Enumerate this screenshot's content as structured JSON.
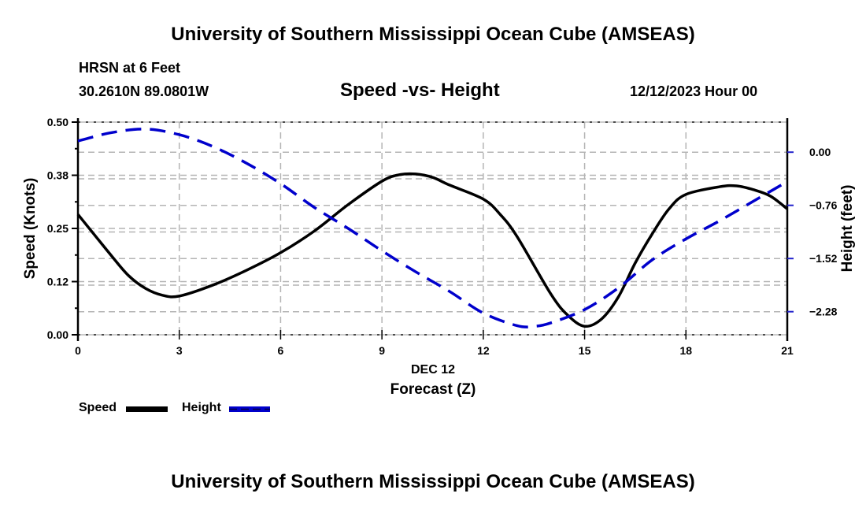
{
  "header": {
    "main_title": "University of Southern Mississippi Ocean Cube (AMSEAS)",
    "station": "HRSN at 6 Feet",
    "coords": "30.2610N  89.0801W",
    "subtitle": "Speed -vs- Height",
    "date": "12/12/2023 Hour 00"
  },
  "footer": {
    "title": "University of Southern Mississippi Ocean Cube (AMSEAS)"
  },
  "chart_data": {
    "type": "line",
    "title": "Speed -vs- Height",
    "xlabel": "Forecast (Z)",
    "xlabel_date": "DEC 12",
    "ylabel": "Speed (Knots)",
    "y2label": "Height (feet)",
    "xlim": [
      0,
      21
    ],
    "ylim": [
      0,
      0.5
    ],
    "y2lim": [
      -2.61,
      0.43
    ],
    "xticks": [
      0,
      3,
      6,
      9,
      12,
      15,
      18,
      21
    ],
    "xtick_labels": [
      "0",
      "3",
      "6",
      "9",
      "12",
      "15",
      "18",
      "21"
    ],
    "yticks": [
      0.0,
      0.125,
      0.25,
      0.375,
      0.5
    ],
    "ytick_labels": [
      "0.00",
      "0.12",
      "0.25",
      "0.38",
      "0.50"
    ],
    "y2ticks": [
      0.0,
      -0.76,
      -1.52,
      -2.28
    ],
    "y2tick_labels": [
      "0.00",
      "−0.76",
      "−1.52",
      "−2.28"
    ],
    "grid": true,
    "legend_position": "bottom-left",
    "series": [
      {
        "name": "Speed",
        "axis": "left",
        "color": "#000000",
        "style": "solid",
        "x": [
          0,
          1,
          1.5,
          2,
          2.5,
          3,
          4,
          5,
          6,
          7,
          8,
          9,
          9.5,
          10,
          10.5,
          11,
          12,
          12.5,
          13,
          14,
          14.5,
          15,
          15.5,
          16,
          16.5,
          17,
          17.5,
          18,
          19,
          19.5,
          20,
          20.5,
          21
        ],
        "values": [
          0.283,
          0.185,
          0.139,
          0.109,
          0.093,
          0.091,
          0.117,
          0.152,
          0.193,
          0.244,
          0.306,
          0.361,
          0.376,
          0.378,
          0.37,
          0.352,
          0.319,
          0.283,
          0.231,
          0.096,
          0.046,
          0.02,
          0.037,
          0.089,
          0.169,
          0.237,
          0.296,
          0.33,
          0.348,
          0.35,
          0.341,
          0.326,
          0.296
        ]
      },
      {
        "name": "Height",
        "axis": "right",
        "color": "#0000cc",
        "style": "dashed",
        "x": [
          0,
          1,
          2,
          3,
          4,
          5,
          6,
          7,
          8,
          9,
          10,
          11,
          12,
          13,
          13.5,
          14,
          15,
          16,
          17,
          18,
          19,
          20,
          21
        ],
        "values": [
          0.16,
          0.28,
          0.33,
          0.25,
          0.08,
          -0.16,
          -0.45,
          -0.79,
          -1.09,
          -1.41,
          -1.71,
          -1.99,
          -2.3,
          -2.48,
          -2.49,
          -2.44,
          -2.25,
          -1.94,
          -1.54,
          -1.24,
          -0.98,
          -0.7,
          -0.42
        ]
      }
    ]
  }
}
